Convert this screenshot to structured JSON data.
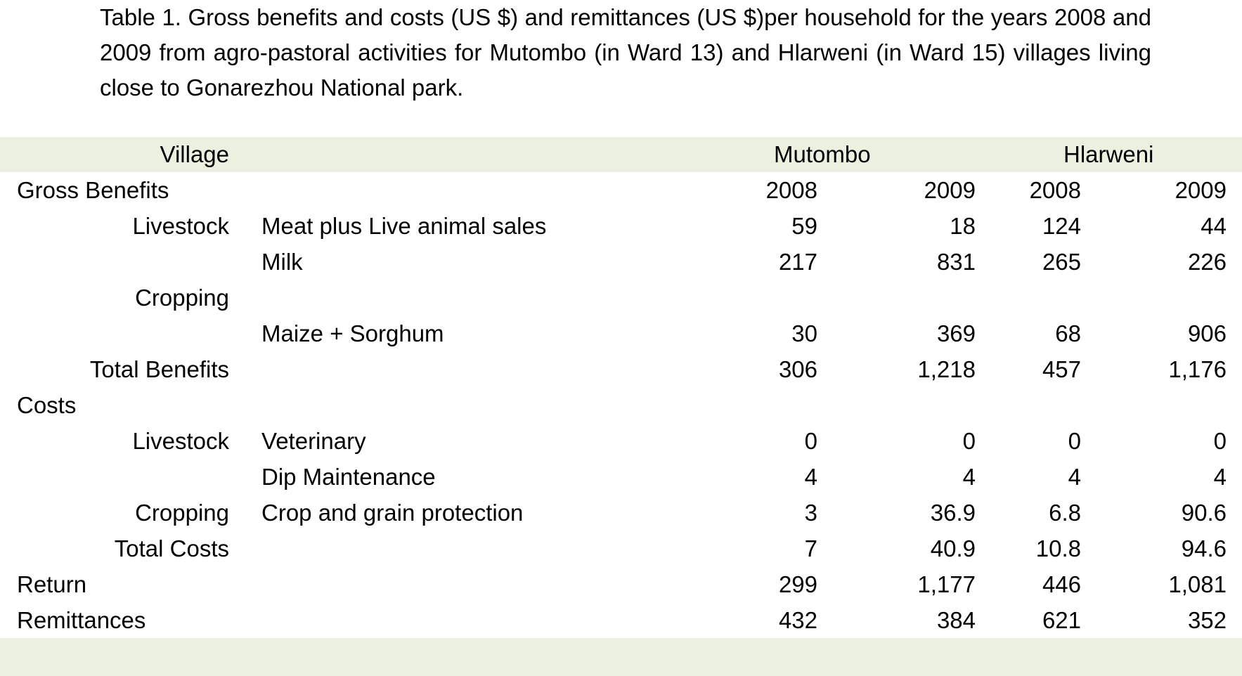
{
  "caption": "Table 1. Gross benefits and costs (US $) and remittances (US $)per household for the years 2008 and 2009 from agro-pastoral activities for Mutombo (in Ward 13) and Hlarweni (in Ward 15) villages living close to Gonarezhou National park.",
  "header": {
    "village_label": "Village",
    "mutombo": "Mutombo",
    "hlarweni": "Hlarweni"
  },
  "band_color": "#EBF1DE",
  "rows": [
    {
      "label": "Gross Benefits",
      "align": "left",
      "sub": "",
      "m08": "2008",
      "m09": "2009",
      "h08": "2008",
      "h09": "2009"
    },
    {
      "label": "Livestock",
      "align": "right",
      "sub": "Meat plus Live animal sales",
      "m08": "59",
      "m09": "18",
      "h08": "124",
      "h09": "44"
    },
    {
      "label": "",
      "align": "right",
      "sub": "Milk",
      "m08": "217",
      "m09": "831",
      "h08": "265",
      "h09": "226"
    },
    {
      "label": "Cropping",
      "align": "right",
      "sub": "",
      "m08": "",
      "m09": "",
      "h08": "",
      "h09": ""
    },
    {
      "label": "",
      "align": "right",
      "sub": "Maize + Sorghum",
      "m08": "30",
      "m09": "369",
      "h08": "68",
      "h09": "906"
    },
    {
      "label": "Total Benefits",
      "align": "right",
      "sub": "",
      "m08": "306",
      "m09": "1,218",
      "h08": "457",
      "h09": "1,176"
    },
    {
      "label": "Costs",
      "align": "left",
      "sub": "",
      "m08": "",
      "m09": "",
      "h08": "",
      "h09": ""
    },
    {
      "label": "Livestock",
      "align": "right",
      "sub": "Veterinary",
      "m08": "0",
      "m09": "0",
      "h08": "0",
      "h09": "0"
    },
    {
      "label": "",
      "align": "right",
      "sub": "Dip Maintenance",
      "m08": "4",
      "m09": "4",
      "h08": "4",
      "h09": "4"
    },
    {
      "label": "Cropping",
      "align": "right",
      "sub": "Crop  and grain protection",
      "m08": "3",
      "m09": "36.9",
      "h08": "6.8",
      "h09": "90.6"
    },
    {
      "label": "Total Costs",
      "align": "right",
      "sub": "",
      "m08": "7",
      "m09": "40.9",
      "h08": "10.8",
      "h09": "94.6"
    },
    {
      "label": "Return",
      "align": "left",
      "sub": "",
      "m08": "299",
      "m09": "1,177",
      "h08": "446",
      "h09": "1,081"
    },
    {
      "label": "Remittances",
      "align": "left",
      "sub": "",
      "m08": "432",
      "m09": "384",
      "h08": "621",
      "h09": "352"
    }
  ]
}
